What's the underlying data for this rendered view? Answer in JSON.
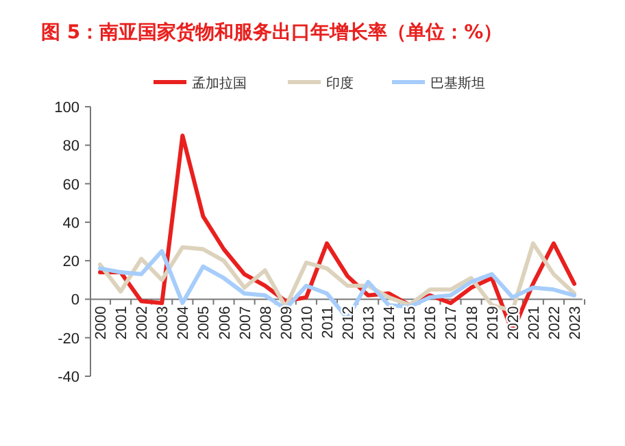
{
  "chart_data": {
    "type": "line",
    "title": "图 5：南亚国家货物和服务出口年增长率（单位：%）",
    "categories": [
      "2000",
      "2001",
      "2002",
      "2003",
      "2004",
      "2005",
      "2006",
      "2007",
      "2008",
      "2009",
      "2010",
      "2011",
      "2012",
      "2013",
      "2014",
      "2015",
      "2016",
      "2017",
      "2018",
      "2019",
      "2020",
      "2021",
      "2022",
      "2023"
    ],
    "series": [
      {
        "name": "孟加拉国",
        "color": "#e8201e",
        "values": [
          14,
          14,
          -1,
          -2,
          85,
          43,
          26,
          13,
          7,
          -1,
          1,
          29,
          12,
          2,
          3,
          -3,
          2,
          -2,
          6,
          11,
          -17,
          8,
          29,
          8
        ]
      },
      {
        "name": "印度",
        "color": "#ddd3bd",
        "values": [
          18,
          4,
          21,
          10,
          27,
          26,
          20,
          6,
          15,
          -4,
          19,
          16,
          7,
          7,
          1,
          -3,
          5,
          5,
          11,
          -3,
          -6,
          29,
          13,
          3
        ]
      },
      {
        "name": "巴基斯坦",
        "color": "#a6cdfb",
        "values": [
          16,
          14,
          13,
          25,
          -2,
          17,
          11,
          3,
          2,
          -5,
          7,
          3,
          -10,
          9,
          -3,
          -4,
          1,
          2,
          9,
          13,
          1,
          6,
          5,
          2
        ]
      }
    ],
    "ylim": [
      -40,
      100
    ],
    "yticks": [
      -40,
      -20,
      0,
      20,
      40,
      60,
      80,
      100
    ],
    "legend": "top",
    "grid": false,
    "marker": "none",
    "line_style": "solid"
  }
}
